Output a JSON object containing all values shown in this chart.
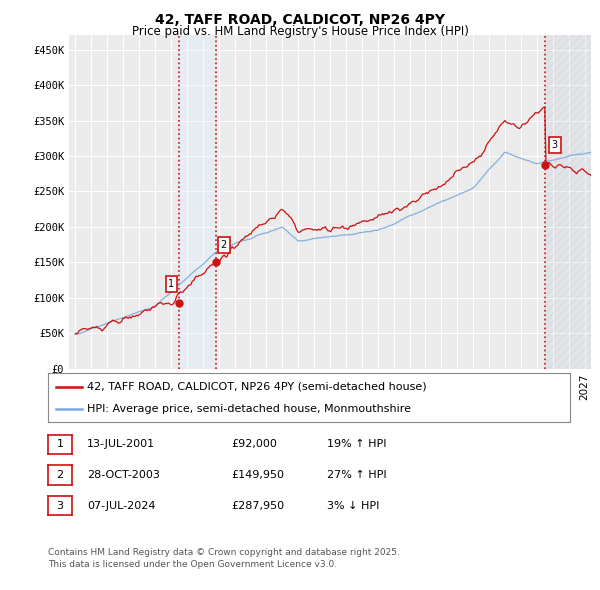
{
  "title": "42, TAFF ROAD, CALDICOT, NP26 4PY",
  "subtitle": "Price paid vs. HM Land Registry's House Price Index (HPI)",
  "ylabel_ticks": [
    "£0",
    "£50K",
    "£100K",
    "£150K",
    "£200K",
    "£250K",
    "£300K",
    "£350K",
    "£400K",
    "£450K"
  ],
  "ytick_values": [
    0,
    50000,
    100000,
    150000,
    200000,
    250000,
    300000,
    350000,
    400000,
    450000
  ],
  "ylim": [
    0,
    470000
  ],
  "xlim_start": 1994.6,
  "xlim_end": 2027.4,
  "background_color": "#ffffff",
  "plot_bg_color": "#ebebeb",
  "grid_color": "#ffffff",
  "hpi_line_color": "#7aaadd",
  "price_line_color": "#cc1111",
  "purchase_dates": [
    2001.54,
    2003.83,
    2024.52
  ],
  "purchase_prices": [
    92000,
    149950,
    287950
  ],
  "purchase_labels": [
    "1",
    "2",
    "3"
  ],
  "vline_color": "#cc1111",
  "highlight_color": "#ddeeff",
  "legend_price_label": "42, TAFF ROAD, CALDICOT, NP26 4PY (semi-detached house)",
  "legend_hpi_label": "HPI: Average price, semi-detached house, Monmouthshire",
  "table_data": [
    [
      "1",
      "13-JUL-2001",
      "£92,000",
      "19% ↑ HPI"
    ],
    [
      "2",
      "28-OCT-2003",
      "£149,950",
      "27% ↑ HPI"
    ],
    [
      "3",
      "07-JUL-2024",
      "£287,950",
      "3% ↓ HPI"
    ]
  ],
  "footer_text": "Contains HM Land Registry data © Crown copyright and database right 2025.\nThis data is licensed under the Open Government Licence v3.0.",
  "title_fontsize": 10,
  "subtitle_fontsize": 8.5,
  "tick_fontsize": 7.5,
  "legend_fontsize": 8,
  "table_fontsize": 8,
  "footer_fontsize": 6.5
}
